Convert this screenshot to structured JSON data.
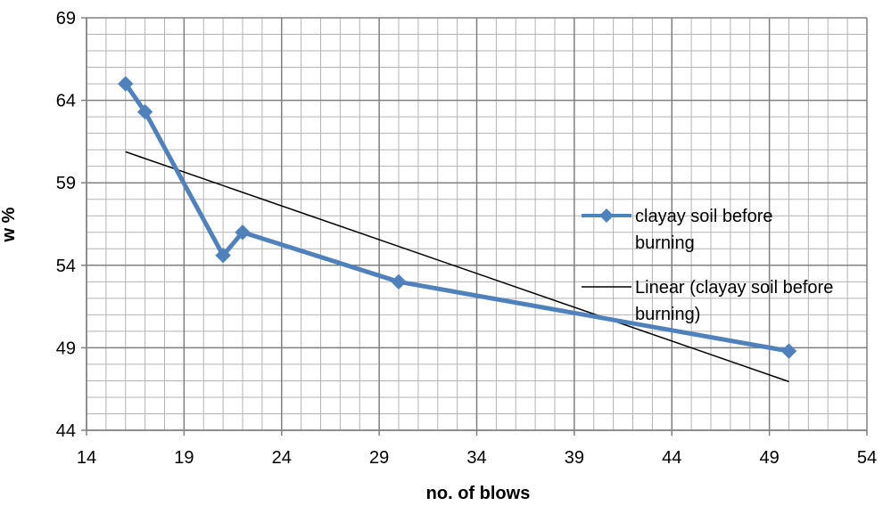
{
  "chart_data": {
    "type": "scatter",
    "xlabel": "no. of blows",
    "ylabel": "w %",
    "xlim": [
      14,
      54
    ],
    "ylim": [
      44,
      69
    ],
    "x_major_step": 5,
    "y_major_step": 5,
    "x_minor_step": 1,
    "y_minor_step": 1,
    "grid": true,
    "legend_position": "right",
    "series": [
      {
        "name": "clayay soil before burning",
        "color": "#4f81bd",
        "marker": "diamond",
        "points": [
          {
            "x": 16,
            "y": 65.0
          },
          {
            "x": 17,
            "y": 63.3
          },
          {
            "x": 21,
            "y": 54.6
          },
          {
            "x": 22,
            "y": 56.0
          },
          {
            "x": 30,
            "y": 53.0
          },
          {
            "x": 50,
            "y": 48.8
          }
        ]
      }
    ],
    "trendline": {
      "name": "Linear (clayay soil before burning)",
      "color": "#000000",
      "type": "linear",
      "x_range": [
        16,
        50
      ]
    }
  }
}
